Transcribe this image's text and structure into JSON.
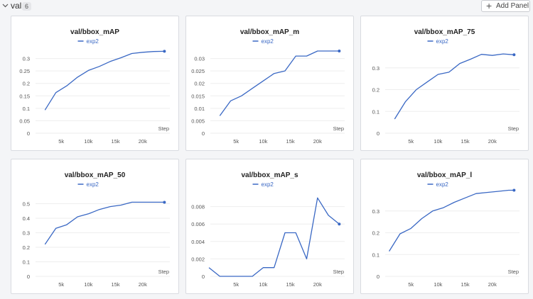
{
  "section": {
    "title": "val",
    "count": "6"
  },
  "toolbar": {
    "add_panel_label": "Add Panel"
  },
  "icons": {
    "collapse": "chevron-down-icon",
    "add": "plus-icon"
  },
  "colors": {
    "series": "#3a68c4",
    "grid": "#eeeeee",
    "axis_text": "#555555"
  },
  "chart_data": [
    {
      "type": "line",
      "title": "val/bbox_mAP",
      "xlabel": "Step",
      "ylabel": "",
      "legend": "top-center",
      "xlim": [
        0,
        25000
      ],
      "ylim": [
        0,
        0.35
      ],
      "xticks": [
        5000,
        10000,
        15000,
        20000
      ],
      "xtick_labels": [
        "5k",
        "10k",
        "15k",
        "20k"
      ],
      "yticks": [
        0,
        0.05,
        0.1,
        0.15,
        0.2,
        0.25,
        0.3
      ],
      "ytick_labels": [
        "0",
        "0.05",
        "0.1",
        "0.15",
        "0.2",
        "0.25",
        "0.3"
      ],
      "series": [
        {
          "name": "exp2",
          "x": [
            2000,
            4000,
            6000,
            8000,
            10000,
            12000,
            14000,
            16000,
            18000,
            20000,
            22000,
            24000
          ],
          "y": [
            0.093,
            0.163,
            0.19,
            0.225,
            0.252,
            0.268,
            0.288,
            0.303,
            0.32,
            0.325,
            0.328,
            0.329
          ]
        }
      ]
    },
    {
      "type": "line",
      "title": "val/bbox_mAP_m",
      "xlabel": "Step",
      "ylabel": "",
      "legend": "top-center",
      "xlim": [
        0,
        25000
      ],
      "ylim": [
        0,
        0.035
      ],
      "xticks": [
        5000,
        10000,
        15000,
        20000
      ],
      "xtick_labels": [
        "5k",
        "10k",
        "15k",
        "20k"
      ],
      "yticks": [
        0,
        0.005,
        0.01,
        0.015,
        0.02,
        0.025,
        0.03
      ],
      "ytick_labels": [
        "0",
        "0.005",
        "0.01",
        "0.015",
        "0.02",
        "0.025",
        "0.03"
      ],
      "series": [
        {
          "name": "exp2",
          "x": [
            2000,
            4000,
            6000,
            8000,
            10000,
            12000,
            14000,
            16000,
            18000,
            20000,
            22000,
            24000
          ],
          "y": [
            0.007,
            0.013,
            0.015,
            0.018,
            0.021,
            0.024,
            0.025,
            0.031,
            0.031,
            0.033,
            0.033,
            0.033
          ]
        }
      ]
    },
    {
      "type": "line",
      "title": "val/bbox_mAP_75",
      "xlabel": "Step",
      "ylabel": "",
      "legend": "top-center",
      "xlim": [
        0,
        25000
      ],
      "ylim": [
        0,
        0.4
      ],
      "xticks": [
        5000,
        10000,
        15000,
        20000
      ],
      "xtick_labels": [
        "5k",
        "10k",
        "15k",
        "20k"
      ],
      "yticks": [
        0,
        0.1,
        0.2,
        0.3
      ],
      "ytick_labels": [
        "0",
        "0.1",
        "0.2",
        "0.3"
      ],
      "series": [
        {
          "name": "exp2",
          "x": [
            2000,
            4000,
            6000,
            8000,
            10000,
            12000,
            14000,
            16000,
            18000,
            20000,
            22000,
            24000
          ],
          "y": [
            0.065,
            0.145,
            0.2,
            0.235,
            0.27,
            0.28,
            0.32,
            0.34,
            0.362,
            0.357,
            0.364,
            0.36
          ]
        }
      ]
    },
    {
      "type": "line",
      "title": "val/bbox_mAP_50",
      "xlabel": "Step",
      "ylabel": "",
      "legend": "top-center",
      "xlim": [
        0,
        25000
      ],
      "ylim": [
        0,
        0.6
      ],
      "xticks": [
        5000,
        10000,
        15000,
        20000
      ],
      "xtick_labels": [
        "5k",
        "10k",
        "15k",
        "20k"
      ],
      "yticks": [
        0,
        0.1,
        0.2,
        0.3,
        0.4,
        0.5
      ],
      "ytick_labels": [
        "0",
        "0.1",
        "0.2",
        "0.3",
        "0.4",
        "0.5"
      ],
      "series": [
        {
          "name": "exp2",
          "x": [
            2000,
            4000,
            6000,
            8000,
            10000,
            12000,
            14000,
            16000,
            18000,
            20000,
            22000,
            24000
          ],
          "y": [
            0.22,
            0.33,
            0.355,
            0.41,
            0.43,
            0.46,
            0.48,
            0.49,
            0.51,
            0.51,
            0.51,
            0.51
          ]
        }
      ]
    },
    {
      "type": "line",
      "title": "val/bbox_mAP_s",
      "xlabel": "Step",
      "ylabel": "",
      "legend": "top-center",
      "xlim": [
        0,
        25000
      ],
      "ylim": [
        0,
        0.01
      ],
      "xticks": [
        5000,
        10000,
        15000,
        20000
      ],
      "xtick_labels": [
        "5k",
        "10k",
        "15k",
        "20k"
      ],
      "yticks": [
        0,
        0.002,
        0.004,
        0.006,
        0.008
      ],
      "ytick_labels": [
        "0",
        "0.002",
        "0.004",
        "0.006",
        "0.008"
      ],
      "series": [
        {
          "name": "exp2",
          "x": [
            0,
            2000,
            4000,
            6000,
            8000,
            10000,
            12000,
            14000,
            16000,
            18000,
            20000,
            22000,
            24000
          ],
          "y": [
            0.001,
            0,
            0,
            0,
            0,
            0.001,
            0.001,
            0.005,
            0.005,
            0.002,
            0.009,
            0.007,
            0.006
          ]
        }
      ]
    },
    {
      "type": "line",
      "title": "val/bbox_mAP_l",
      "xlabel": "Step",
      "ylabel": "",
      "legend": "top-center",
      "xlim": [
        0,
        25000
      ],
      "ylim": [
        0,
        0.4
      ],
      "xticks": [
        5000,
        10000,
        15000,
        20000
      ],
      "xtick_labels": [
        "5k",
        "10k",
        "15k",
        "20k"
      ],
      "yticks": [
        0,
        0.1,
        0.2,
        0.3
      ],
      "ytick_labels": [
        "0",
        "0.1",
        "0.2",
        "0.3"
      ],
      "series": [
        {
          "name": "exp2",
          "x": [
            1000,
            3000,
            5000,
            7000,
            9000,
            11000,
            13000,
            15000,
            17000,
            19000,
            21000,
            23000,
            24000
          ],
          "y": [
            0.115,
            0.195,
            0.22,
            0.265,
            0.3,
            0.315,
            0.34,
            0.36,
            0.38,
            0.385,
            0.39,
            0.395,
            0.395
          ]
        }
      ]
    }
  ]
}
